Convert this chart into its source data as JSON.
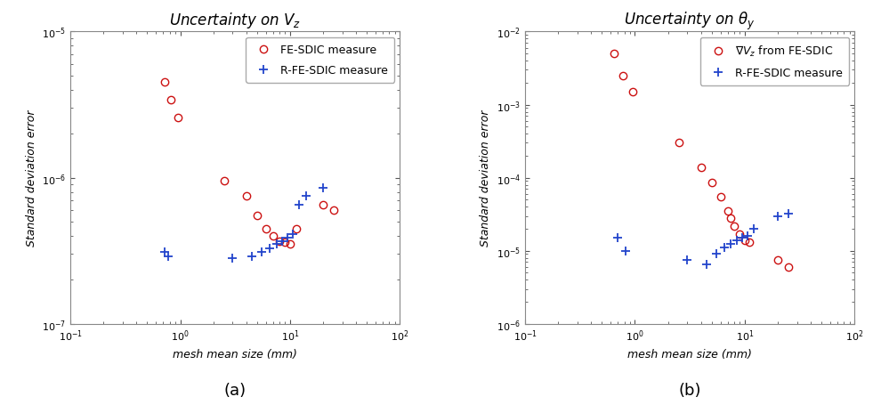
{
  "plot_a": {
    "title": "Uncertainty on $V_z$",
    "xlabel": "mesh mean size (mm)",
    "ylabel": "Standard deviation error",
    "xlim": [
      0.1,
      100
    ],
    "ylim": [
      1e-07,
      1e-05
    ],
    "red_x": [
      0.72,
      0.82,
      0.95,
      2.5,
      4.0,
      5.0,
      6.0,
      7.0,
      8.0,
      9.0,
      10.0,
      11.5,
      20.0,
      25.0
    ],
    "red_y": [
      4.5e-06,
      3.4e-06,
      2.6e-06,
      9.5e-07,
      7.5e-07,
      5.5e-07,
      4.5e-07,
      4e-07,
      3.7e-07,
      3.6e-07,
      3.5e-07,
      4.5e-07,
      6.5e-07,
      6e-07
    ],
    "blue_x": [
      0.72,
      0.78,
      3.0,
      4.5,
      5.5,
      6.5,
      7.5,
      8.5,
      9.5,
      10.5,
      12.0,
      14.0,
      20.0
    ],
    "blue_y": [
      3.1e-07,
      2.9e-07,
      2.8e-07,
      2.9e-07,
      3.1e-07,
      3.3e-07,
      3.5e-07,
      3.7e-07,
      3.9e-07,
      4.1e-07,
      6.5e-07,
      7.5e-07,
      8.5e-07
    ],
    "red_label": "FE-SDIC measure",
    "blue_label": "R-FE-SDIC measure"
  },
  "plot_b": {
    "title": "Uncertainty on $\\theta_y$",
    "xlabel": "mesh mean size (mm)",
    "ylabel": "Standard deviation error",
    "xlim": [
      0.1,
      100
    ],
    "ylim": [
      1e-06,
      0.01
    ],
    "red_x": [
      0.65,
      0.78,
      0.95,
      2.5,
      4.0,
      5.0,
      6.0,
      7.0,
      7.5,
      8.0,
      9.0,
      10.0,
      11.0,
      20.0,
      25.0
    ],
    "red_y": [
      0.005,
      0.0025,
      0.0015,
      0.0003,
      0.00014,
      8.5e-05,
      5.5e-05,
      3.5e-05,
      2.8e-05,
      2.2e-05,
      1.7e-05,
      1.4e-05,
      1.3e-05,
      7.5e-06,
      6e-06
    ],
    "blue_x": [
      0.7,
      0.82,
      3.0,
      4.5,
      5.5,
      6.5,
      7.5,
      8.5,
      9.5,
      10.5,
      12.0,
      20.0,
      25.0
    ],
    "blue_y": [
      1.5e-05,
      1e-05,
      7.5e-06,
      6.5e-06,
      9e-06,
      1.1e-05,
      1.25e-05,
      1.4e-05,
      1.5e-05,
      1.6e-05,
      2e-05,
      3e-05,
      3.2e-05
    ],
    "red_label": "$\\nabla V_z$ from FE-SDIC",
    "blue_label": "R-FE-SDIC measure"
  },
  "red_color": "#cc1111",
  "blue_color": "#2244cc",
  "bg_color": "#ffffff",
  "label_fontsize": 9,
  "title_fontsize": 12,
  "tick_labelsize": 8,
  "legend_fontsize": 9
}
